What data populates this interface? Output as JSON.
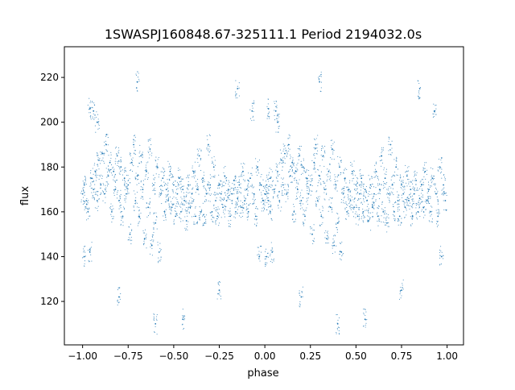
{
  "chart_data": {
    "type": "scatter",
    "title": "1SWASPJ160848.67-325111.1 Period 2194032.0s",
    "xlabel": "phase",
    "ylabel": "flux",
    "xlim": [
      -1.1,
      1.09
    ],
    "ylim": [
      100.6,
      233.7
    ],
    "xticks": [
      -1.0,
      -0.75,
      -0.5,
      -0.25,
      0.0,
      0.25,
      0.5,
      0.75,
      1.0
    ],
    "xtick_labels": [
      "−1.00",
      "−0.75",
      "−0.50",
      "−0.25",
      "0.00",
      "0.25",
      "0.50",
      "0.75",
      "1.00"
    ],
    "yticks": [
      120,
      140,
      160,
      180,
      200,
      220
    ],
    "ytick_labels": [
      "120",
      "140",
      "160",
      "180",
      "200",
      "220"
    ],
    "grid": false,
    "color": "#1f77b4",
    "points_phase_0_to_1": [
      [
        0.0,
        168
      ],
      [
        0.01,
        172
      ],
      [
        0.01,
        140
      ],
      [
        0.02,
        165
      ],
      [
        0.02,
        206
      ],
      [
        0.03,
        160
      ],
      [
        0.03,
        175
      ],
      [
        0.04,
        142
      ],
      [
        0.05,
        170
      ],
      [
        0.06,
        205
      ],
      [
        0.07,
        178
      ],
      [
        0.07,
        200
      ],
      [
        0.08,
        165
      ],
      [
        0.09,
        183
      ],
      [
        0.1,
        172
      ],
      [
        0.11,
        186
      ],
      [
        0.12,
        168
      ],
      [
        0.13,
        190
      ],
      [
        0.14,
        176
      ],
      [
        0.15,
        182
      ],
      [
        0.16,
        160
      ],
      [
        0.17,
        178
      ],
      [
        0.18,
        170
      ],
      [
        0.19,
        185
      ],
      [
        0.2,
        165
      ],
      [
        0.21,
        180
      ],
      [
        0.22,
        158
      ],
      [
        0.23,
        175
      ],
      [
        0.24,
        168
      ],
      [
        0.25,
        172
      ],
      [
        0.26,
        150
      ],
      [
        0.27,
        182
      ],
      [
        0.28,
        190
      ],
      [
        0.29,
        165
      ],
      [
        0.3,
        176
      ],
      [
        0.31,
        158
      ],
      [
        0.32,
        185
      ],
      [
        0.33,
        170
      ],
      [
        0.34,
        148
      ],
      [
        0.35,
        178
      ],
      [
        0.36,
        162
      ],
      [
        0.37,
        188
      ],
      [
        0.38,
        145
      ],
      [
        0.39,
        172
      ],
      [
        0.4,
        155
      ],
      [
        0.41,
        180
      ],
      [
        0.42,
        142
      ],
      [
        0.43,
        168
      ],
      [
        0.44,
        175
      ],
      [
        0.45,
        160
      ],
      [
        0.46,
        170
      ],
      [
        0.47,
        165
      ],
      [
        0.48,
        178
      ],
      [
        0.49,
        162
      ],
      [
        0.5,
        172
      ],
      [
        0.51,
        158
      ],
      [
        0.52,
        168
      ],
      [
        0.53,
        175
      ],
      [
        0.54,
        160
      ],
      [
        0.55,
        170
      ],
      [
        0.56,
        165
      ],
      [
        0.57,
        156
      ],
      [
        0.58,
        172
      ],
      [
        0.59,
        162
      ],
      [
        0.6,
        168
      ],
      [
        0.61,
        178
      ],
      [
        0.62,
        158
      ],
      [
        0.63,
        170
      ],
      [
        0.64,
        185
      ],
      [
        0.65,
        160
      ],
      [
        0.66,
        175
      ],
      [
        0.67,
        155
      ],
      [
        0.68,
        168
      ],
      [
        0.69,
        190
      ],
      [
        0.7,
        172
      ],
      [
        0.71,
        160
      ],
      [
        0.72,
        180
      ],
      [
        0.73,
        165
      ],
      [
        0.74,
        158
      ],
      [
        0.75,
        172
      ],
      [
        0.76,
        168
      ],
      [
        0.77,
        162
      ],
      [
        0.78,
        176
      ],
      [
        0.79,
        165
      ],
      [
        0.8,
        170
      ],
      [
        0.81,
        158
      ],
      [
        0.82,
        168
      ],
      [
        0.83,
        174
      ],
      [
        0.84,
        160
      ],
      [
        0.85,
        166
      ],
      [
        0.86,
        172
      ],
      [
        0.87,
        162
      ],
      [
        0.88,
        178
      ],
      [
        0.89,
        165
      ],
      [
        0.9,
        170
      ],
      [
        0.91,
        160
      ],
      [
        0.92,
        175
      ],
      [
        0.93,
        205
      ],
      [
        0.94,
        168
      ],
      [
        0.95,
        158
      ],
      [
        0.96,
        180
      ],
      [
        0.97,
        140
      ],
      [
        0.98,
        172
      ],
      [
        0.99,
        165
      ],
      [
        0.2,
        122
      ],
      [
        0.3,
        218
      ],
      [
        0.55,
        112
      ],
      [
        0.75,
        125
      ],
      [
        0.85,
        215
      ],
      [
        0.4,
        110
      ]
    ],
    "points_phase_minus1_to_0": [
      [
        -1.0,
        168
      ],
      [
        -0.99,
        172
      ],
      [
        -0.99,
        140
      ],
      [
        -0.98,
        165
      ],
      [
        -0.96,
        206
      ],
      [
        -0.97,
        160
      ],
      [
        -0.95,
        175
      ],
      [
        -0.96,
        142
      ],
      [
        -0.94,
        170
      ],
      [
        -0.94,
        205
      ],
      [
        -0.93,
        178
      ],
      [
        -0.92,
        200
      ],
      [
        -0.92,
        165
      ],
      [
        -0.91,
        183
      ],
      [
        -0.9,
        172
      ],
      [
        -0.89,
        186
      ],
      [
        -0.88,
        168
      ],
      [
        -0.87,
        190
      ],
      [
        -0.86,
        176
      ],
      [
        -0.85,
        182
      ],
      [
        -0.84,
        160
      ],
      [
        -0.83,
        178
      ],
      [
        -0.82,
        170
      ],
      [
        -0.81,
        185
      ],
      [
        -0.8,
        165
      ],
      [
        -0.79,
        180
      ],
      [
        -0.78,
        158
      ],
      [
        -0.77,
        175
      ],
      [
        -0.76,
        168
      ],
      [
        -0.75,
        172
      ],
      [
        -0.74,
        150
      ],
      [
        -0.73,
        182
      ],
      [
        -0.72,
        190
      ],
      [
        -0.71,
        165
      ],
      [
        -0.7,
        176
      ],
      [
        -0.69,
        158
      ],
      [
        -0.68,
        185
      ],
      [
        -0.67,
        170
      ],
      [
        -0.66,
        148
      ],
      [
        -0.65,
        178
      ],
      [
        -0.64,
        162
      ],
      [
        -0.63,
        188
      ],
      [
        -0.62,
        145
      ],
      [
        -0.61,
        172
      ],
      [
        -0.6,
        155
      ],
      [
        -0.59,
        180
      ],
      [
        -0.58,
        142
      ],
      [
        -0.57,
        168
      ],
      [
        -0.56,
        175
      ],
      [
        -0.55,
        160
      ],
      [
        -0.54,
        170
      ],
      [
        -0.53,
        165
      ],
      [
        -0.52,
        178
      ],
      [
        -0.51,
        162
      ],
      [
        -0.5,
        172
      ],
      [
        -0.49,
        158
      ],
      [
        -0.48,
        168
      ],
      [
        -0.47,
        175
      ],
      [
        -0.46,
        160
      ],
      [
        -0.45,
        170
      ],
      [
        -0.44,
        165
      ],
      [
        -0.43,
        156
      ],
      [
        -0.42,
        172
      ],
      [
        -0.41,
        162
      ],
      [
        -0.4,
        168
      ],
      [
        -0.39,
        178
      ],
      [
        -0.38,
        158
      ],
      [
        -0.37,
        170
      ],
      [
        -0.36,
        185
      ],
      [
        -0.35,
        160
      ],
      [
        -0.34,
        175
      ],
      [
        -0.33,
        155
      ],
      [
        -0.32,
        168
      ],
      [
        -0.31,
        190
      ],
      [
        -0.3,
        172
      ],
      [
        -0.29,
        160
      ],
      [
        -0.28,
        180
      ],
      [
        -0.27,
        165
      ],
      [
        -0.26,
        158
      ],
      [
        -0.25,
        172
      ],
      [
        -0.24,
        168
      ],
      [
        -0.23,
        162
      ],
      [
        -0.22,
        176
      ],
      [
        -0.21,
        165
      ],
      [
        -0.2,
        170
      ],
      [
        -0.19,
        158
      ],
      [
        -0.18,
        168
      ],
      [
        -0.17,
        174
      ],
      [
        -0.16,
        160
      ],
      [
        -0.15,
        166
      ],
      [
        -0.14,
        172
      ],
      [
        -0.13,
        162
      ],
      [
        -0.12,
        178
      ],
      [
        -0.11,
        165
      ],
      [
        -0.1,
        170
      ],
      [
        -0.09,
        160
      ],
      [
        -0.08,
        175
      ],
      [
        -0.07,
        205
      ],
      [
        -0.06,
        168
      ],
      [
        -0.05,
        158
      ],
      [
        -0.04,
        180
      ],
      [
        -0.03,
        140
      ],
      [
        -0.02,
        172
      ],
      [
        -0.01,
        165
      ],
      [
        -0.8,
        122
      ],
      [
        -0.7,
        218
      ],
      [
        -0.45,
        112
      ],
      [
        -0.25,
        125
      ],
      [
        -0.15,
        215
      ],
      [
        -0.6,
        110
      ]
    ]
  }
}
